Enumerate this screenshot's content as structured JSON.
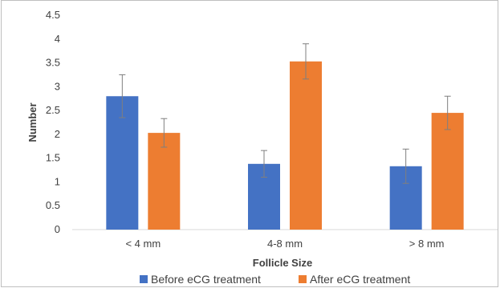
{
  "chart_data": {
    "type": "bar",
    "title": "",
    "xlabel": "Follicle Size",
    "ylabel": "Number",
    "categories": [
      "< 4 mm",
      "4-8 mm",
      "> 8 mm"
    ],
    "ylim": [
      0,
      4.5
    ],
    "ytick_step": 0.5,
    "ytick_labels": [
      "0",
      "0.5",
      "1",
      "1.5",
      "2",
      "2.5",
      "3",
      "3.5",
      "4",
      "4.5"
    ],
    "grid": false,
    "legend_position": "bottom",
    "series": [
      {
        "name": "Before eCG treatment",
        "color": "#4472c4",
        "values": [
          2.8,
          1.38,
          1.33
        ],
        "error": [
          0.45,
          0.28,
          0.36
        ]
      },
      {
        "name": "After eCG treatment",
        "color": "#ed7d31",
        "values": [
          2.03,
          3.53,
          2.45
        ],
        "error": [
          0.3,
          0.37,
          0.35
        ]
      }
    ]
  }
}
